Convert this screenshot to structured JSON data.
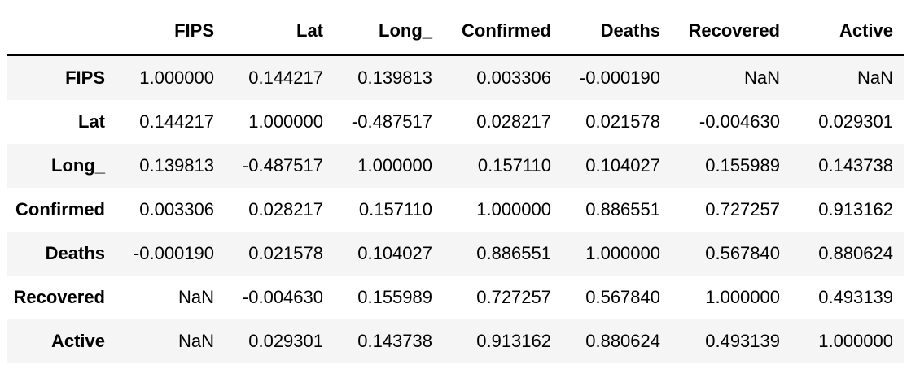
{
  "table": {
    "index_header": "",
    "columns": [
      "FIPS",
      "Lat",
      "Long_",
      "Confirmed",
      "Deaths",
      "Recovered",
      "Active"
    ],
    "rows": [
      {
        "label": "FIPS",
        "values": [
          "1.000000",
          "0.144217",
          "0.139813",
          "0.003306",
          "-0.000190",
          "NaN",
          "NaN"
        ]
      },
      {
        "label": "Lat",
        "values": [
          "0.144217",
          "1.000000",
          "-0.487517",
          "0.028217",
          "0.021578",
          "-0.004630",
          "0.029301"
        ]
      },
      {
        "label": "Long_",
        "values": [
          "0.139813",
          "-0.487517",
          "1.000000",
          "0.157110",
          "0.104027",
          "0.155989",
          "0.143738"
        ]
      },
      {
        "label": "Confirmed",
        "values": [
          "0.003306",
          "0.028217",
          "0.157110",
          "1.000000",
          "0.886551",
          "0.727257",
          "0.913162"
        ]
      },
      {
        "label": "Deaths",
        "values": [
          "-0.000190",
          "0.021578",
          "0.104027",
          "0.886551",
          "1.000000",
          "0.567840",
          "0.880624"
        ]
      },
      {
        "label": "Recovered",
        "values": [
          "NaN",
          "-0.004630",
          "0.155989",
          "0.727257",
          "0.567840",
          "1.000000",
          "0.493139"
        ]
      },
      {
        "label": "Active",
        "values": [
          "NaN",
          "0.029301",
          "0.143738",
          "0.913162",
          "0.880624",
          "0.493139",
          "1.000000"
        ]
      }
    ]
  }
}
